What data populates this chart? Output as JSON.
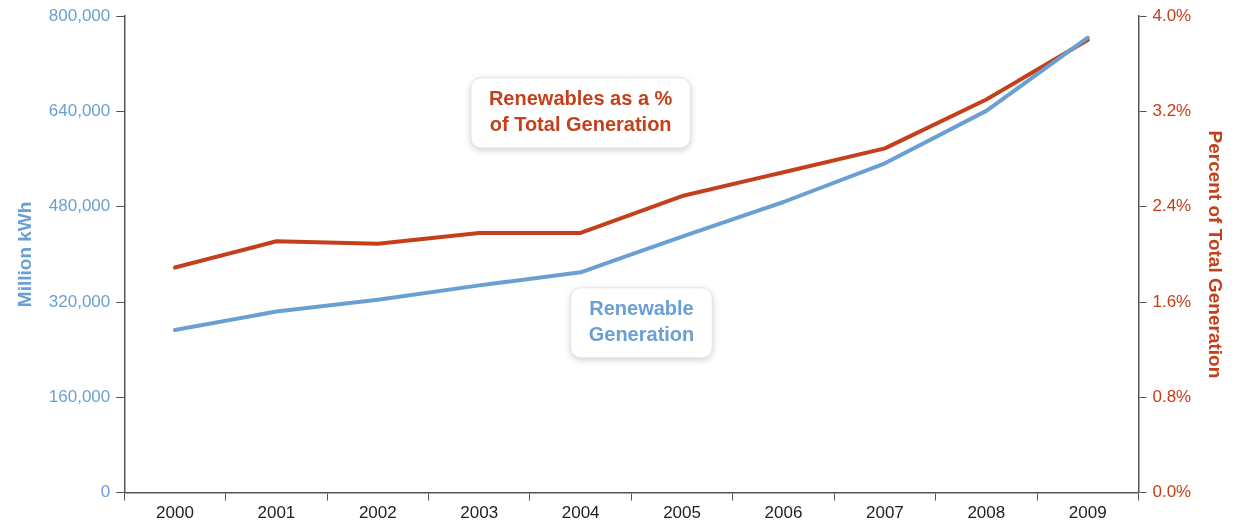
{
  "chart_data": {
    "type": "line",
    "categories": [
      "2000",
      "2001",
      "2002",
      "2003",
      "2004",
      "2005",
      "2006",
      "2007",
      "2008",
      "2009"
    ],
    "ylabel": "Million kWh",
    "y2label": "Percent of Total Generation",
    "series": [
      {
        "name": "Renewable Generation",
        "color": "#6a9fd4",
        "values": [
          273000,
          304000,
          324000,
          348000,
          370000,
          430000,
          488000,
          553000,
          641000,
          764000
        ]
      },
      {
        "name": "Renewables as a % of Total Generation",
        "color": "#c4401a",
        "axis": "y2",
        "values": [
          1.89,
          2.11,
          2.09,
          2.18,
          2.18,
          2.49,
          2.69,
          2.89,
          3.3,
          3.8
        ]
      }
    ],
    "ylim": [
      0,
      800000
    ],
    "yticks": [
      {
        "value": 0,
        "label": "0"
      },
      {
        "value": 160000,
        "label": "160,000"
      },
      {
        "value": 320000,
        "label": "320,000"
      },
      {
        "value": 480000,
        "label": "480,000"
      },
      {
        "value": 640000,
        "label": "640,000"
      },
      {
        "value": 800000,
        "label": "800,000"
      }
    ],
    "y2lim": [
      0,
      4.0
    ],
    "y2ticks": [
      {
        "value": 0,
        "label": "0.0%"
      },
      {
        "value": 0.8,
        "label": "0.8%"
      },
      {
        "value": 1.6,
        "label": "1.6%"
      },
      {
        "value": 2.4,
        "label": "2.4%"
      },
      {
        "value": 3.2,
        "label": "3.2%"
      },
      {
        "value": 4.0,
        "label": "4.0%"
      }
    ],
    "grid": false,
    "legend": false,
    "marker": "none",
    "line_style": "solid"
  }
}
